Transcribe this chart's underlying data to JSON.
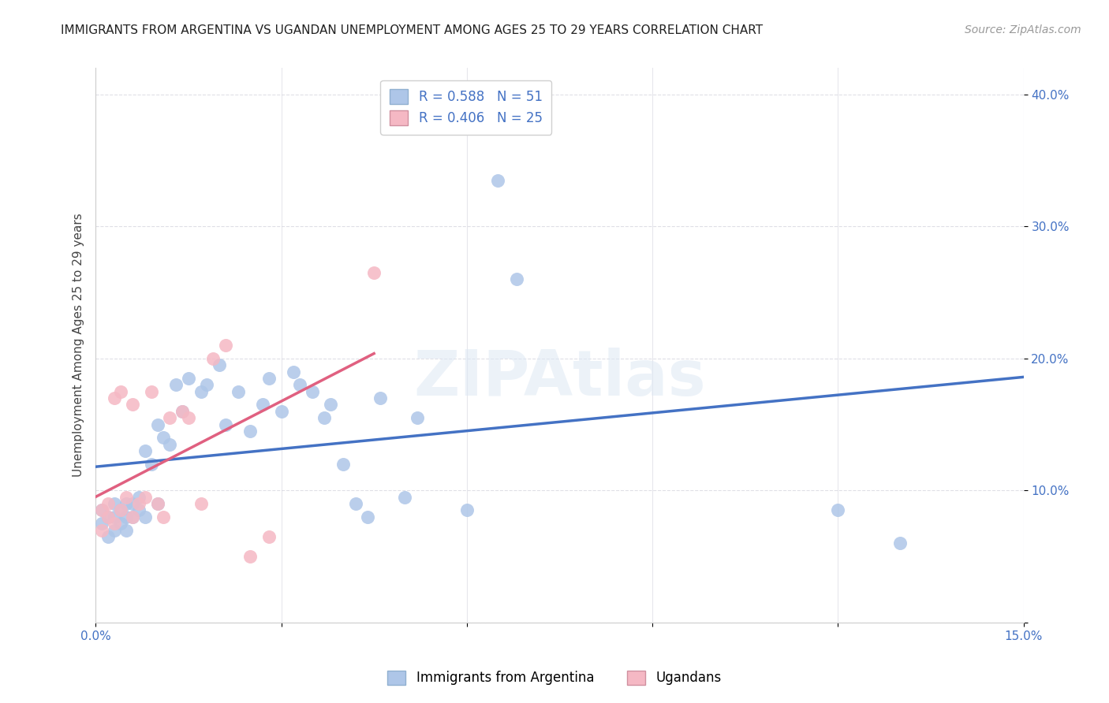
{
  "title": "IMMIGRANTS FROM ARGENTINA VS UGANDAN UNEMPLOYMENT AMONG AGES 25 TO 29 YEARS CORRELATION CHART",
  "source": "Source: ZipAtlas.com",
  "ylabel": "Unemployment Among Ages 25 to 29 years",
  "xlim": [
    0.0,
    0.15
  ],
  "ylim": [
    0.0,
    0.42
  ],
  "xticks": [
    0.0,
    0.03,
    0.06,
    0.09,
    0.12,
    0.15
  ],
  "yticks": [
    0.0,
    0.1,
    0.2,
    0.3,
    0.4
  ],
  "xticklabels": [
    "0.0%",
    "",
    "",
    "",
    "",
    "15.0%"
  ],
  "yticklabels": [
    "",
    "10.0%",
    "20.0%",
    "30.0%",
    "40.0%"
  ],
  "argentina_R": 0.588,
  "argentina_N": 51,
  "ugandan_R": 0.406,
  "ugandan_N": 25,
  "argentina_color": "#aec6e8",
  "ugandan_color": "#f5b8c4",
  "argentina_line_color": "#4472c4",
  "ugandan_line_color": "#e06080",
  "dash_color": "#c8c8c8",
  "argentina_x": [
    0.001,
    0.001,
    0.002,
    0.002,
    0.003,
    0.003,
    0.003,
    0.004,
    0.004,
    0.005,
    0.005,
    0.005,
    0.006,
    0.006,
    0.007,
    0.007,
    0.008,
    0.008,
    0.009,
    0.01,
    0.01,
    0.011,
    0.012,
    0.013,
    0.014,
    0.015,
    0.017,
    0.018,
    0.02,
    0.021,
    0.023,
    0.025,
    0.027,
    0.028,
    0.03,
    0.032,
    0.033,
    0.035,
    0.037,
    0.038,
    0.04,
    0.042,
    0.044,
    0.046,
    0.05,
    0.052,
    0.06,
    0.065,
    0.068,
    0.12,
    0.13
  ],
  "argentina_y": [
    0.075,
    0.085,
    0.065,
    0.08,
    0.07,
    0.08,
    0.09,
    0.075,
    0.085,
    0.07,
    0.08,
    0.09,
    0.08,
    0.09,
    0.085,
    0.095,
    0.08,
    0.13,
    0.12,
    0.09,
    0.15,
    0.14,
    0.135,
    0.18,
    0.16,
    0.185,
    0.175,
    0.18,
    0.195,
    0.15,
    0.175,
    0.145,
    0.165,
    0.185,
    0.16,
    0.19,
    0.18,
    0.175,
    0.155,
    0.165,
    0.12,
    0.09,
    0.08,
    0.17,
    0.095,
    0.155,
    0.085,
    0.335,
    0.26,
    0.085,
    0.06
  ],
  "ugandan_x": [
    0.001,
    0.001,
    0.002,
    0.002,
    0.003,
    0.003,
    0.004,
    0.004,
    0.005,
    0.006,
    0.006,
    0.007,
    0.008,
    0.009,
    0.01,
    0.011,
    0.012,
    0.014,
    0.015,
    0.017,
    0.019,
    0.021,
    0.025,
    0.028,
    0.045
  ],
  "ugandan_y": [
    0.07,
    0.085,
    0.08,
    0.09,
    0.075,
    0.17,
    0.175,
    0.085,
    0.095,
    0.08,
    0.165,
    0.09,
    0.095,
    0.175,
    0.09,
    0.08,
    0.155,
    0.16,
    0.155,
    0.09,
    0.2,
    0.21,
    0.05,
    0.065,
    0.265
  ],
  "watermark": "ZIPAtlas",
  "background_color": "#ffffff",
  "grid_color": "#d8d8e0",
  "title_fontsize": 11,
  "axis_label_fontsize": 11,
  "tick_fontsize": 11,
  "legend_fontsize": 12,
  "source_fontsize": 10
}
